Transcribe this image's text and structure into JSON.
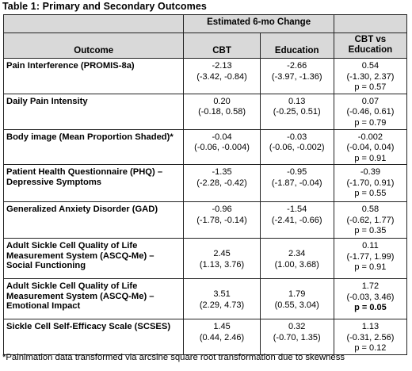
{
  "caption": "Table 1: Primary and Secondary Outcomes",
  "header": {
    "group_label": "Estimated 6-mo Change",
    "col_outcome": "Outcome",
    "col_cbt": "CBT",
    "col_education": "Education",
    "col_diff_line1": "CBT vs",
    "col_diff_line2": "Education"
  },
  "rows": [
    {
      "outcome": "Pain Interference (PROMIS-8a)",
      "cbt": "-2.13",
      "cbt_ci": "(-3.42, -0.84)",
      "edu": "-2.66",
      "edu_ci": "(-3.97, -1.36)",
      "diff": "0.54",
      "diff_ci": "(-1.30, 2.37)",
      "diff_p": "p = 0.57"
    },
    {
      "outcome": "Daily Pain Intensity",
      "cbt": "0.20",
      "cbt_ci": "(-0.18, 0.58)",
      "edu": "0.13",
      "edu_ci": "(-0.25, 0.51)",
      "diff": "0.07",
      "diff_ci": "(-0.46, 0.61)",
      "diff_p": "p = 0.79"
    },
    {
      "outcome": "Body image (Mean Proportion Shaded)*",
      "cbt": "-0.04",
      "cbt_ci": "(-0.06, -0.004)",
      "edu": "-0.03",
      "edu_ci": "(-0.06, -0.002)",
      "diff": "-0.002",
      "diff_ci": "(-0.04, 0.04)",
      "diff_p": "p = 0.91"
    },
    {
      "outcome": "Patient Health Questionnaire (PHQ) – Depressive Symptoms",
      "cbt": "-1.35",
      "cbt_ci": "(-2.28, -0.42)",
      "edu": "-0.95",
      "edu_ci": "(-1.87, -0.04)",
      "diff": "-0.39",
      "diff_ci": "(-1.70, 0.91)",
      "diff_p": "p = 0.55"
    },
    {
      "outcome": "Generalized Anxiety Disorder (GAD)",
      "cbt": "-0.96",
      "cbt_ci": "(-1.78, -0.14)",
      "edu": "-1.54",
      "edu_ci": "(-2.41, -0.66)",
      "diff": "0.58",
      "diff_ci": "(-0.62, 1.77)",
      "diff_p": "p = 0.35"
    },
    {
      "outcome": "Adult Sickle Cell Quality of Life Measurement System (ASCQ-Me) – Social Functioning",
      "cbt": "2.45",
      "cbt_ci": "(1.13, 3.76)",
      "edu": "2.34",
      "edu_ci": "(1.00, 3.68)",
      "diff": "0.11",
      "diff_ci": "(-1.77, 1.99)",
      "diff_p": "p = 0.91"
    },
    {
      "outcome": "Adult Sickle Cell Quality of Life Measurement System (ASCQ-Me) – Emotional Impact",
      "cbt": "3.51",
      "cbt_ci": "(2.29, 4.73)",
      "edu": "1.79",
      "edu_ci": "(0.55, 3.04)",
      "diff": "1.72",
      "diff_ci": "(-0.03, 3.46)",
      "diff_p": "p = 0.05"
    },
    {
      "outcome": "Sickle Cell Self-Efficacy Scale (SCSES)",
      "cbt": "1.45",
      "cbt_ci": "(0.44, 2.46)",
      "edu": "0.32",
      "edu_ci": "(-0.70, 1.35)",
      "diff": "1.13",
      "diff_ci": "(-0.31, 2.56)",
      "diff_p": "p = 0.12"
    }
  ],
  "footnote": "*Painimation data transformed via arcsine square root transformation due to skewness"
}
